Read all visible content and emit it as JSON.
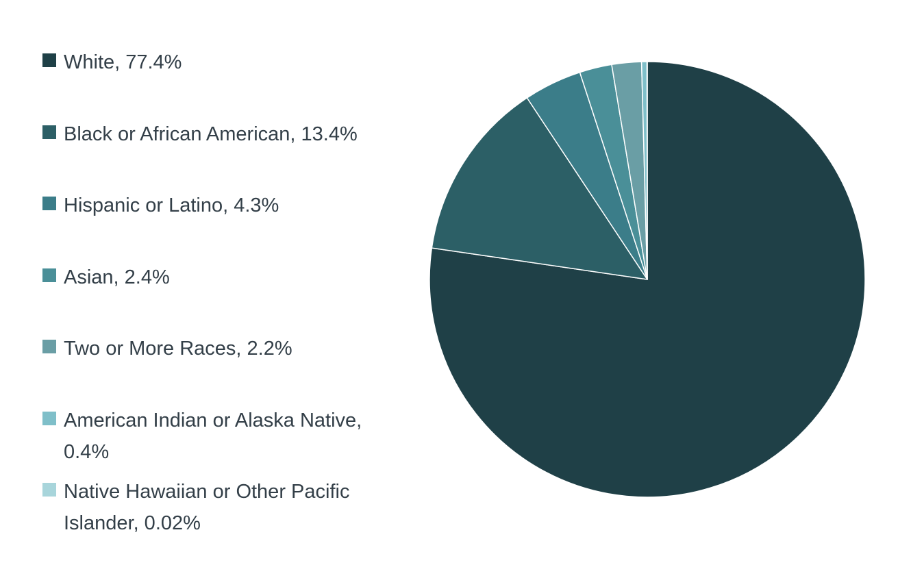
{
  "chart_data": {
    "type": "pie",
    "categories": [
      "White, 77.4%",
      "Black or African American, 13.4%",
      "Hispanic or Latino, 4.3%",
      "Asian, 2.4%",
      "Two or More Races, 2.2%",
      "American Indian or Alaska Native, 0.4%",
      "Native Hawaiian or Other Pacific Islander, 0.02%"
    ],
    "values": [
      77.4,
      13.4,
      4.3,
      2.4,
      2.2,
      0.4,
      0.02
    ],
    "colors": [
      "#1f4047",
      "#2c5f66",
      "#3b7d89",
      "#4a8f98",
      "#6a9ea5",
      "#7fbfc9",
      "#a8d5db"
    ],
    "legend": "left"
  }
}
